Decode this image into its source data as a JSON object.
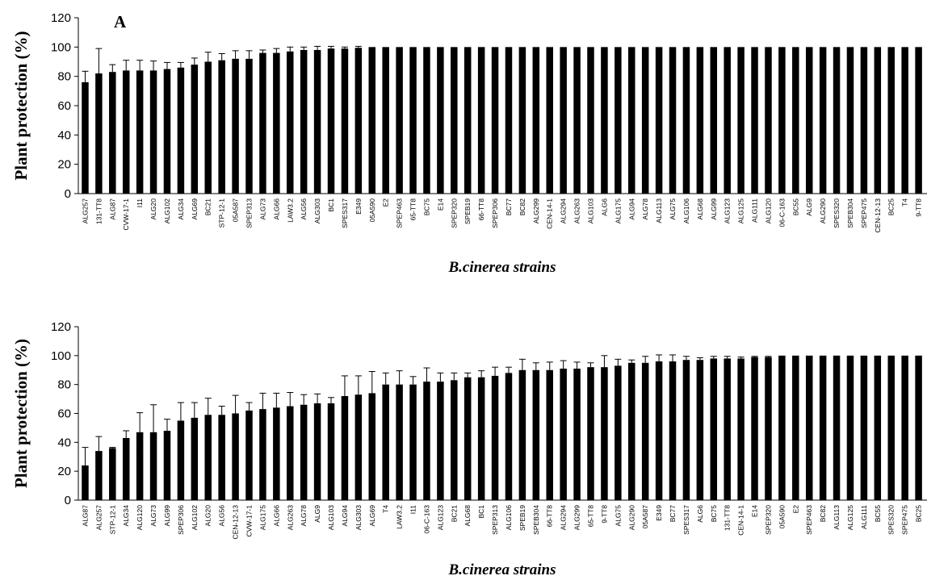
{
  "chart_data": [
    {
      "type": "bar",
      "panel_label": "A",
      "xlabel": "B.cinerea strains",
      "ylabel": "Plant protection (%)",
      "ylim": [
        0,
        120
      ],
      "yticks": [
        0,
        20,
        40,
        60,
        80,
        100,
        120
      ],
      "grid": false,
      "categories": [
        "ALG257",
        "131-TT8",
        "ALG87",
        "CVW-17-1",
        "I11",
        "ALG20",
        "ALG102",
        "ALG34",
        "ALG69",
        "BC21",
        "STP-12-1",
        "05A587",
        "SPEP313",
        "ALG73",
        "ALG66",
        "LAW3.2",
        "ALG56",
        "ALG303",
        "BC1",
        "SPES317",
        "E349",
        "05A590",
        "E2",
        "SPEP463",
        "65-TT8",
        "BC75",
        "E14",
        "SPEP320",
        "SPEB19",
        "66-TT8",
        "SPEP306",
        "BC77",
        "BC82",
        "ALG299",
        "CEN-14-1",
        "ALG294",
        "ALG263",
        "ALG103",
        "ALG6",
        "ALG175",
        "ALG94",
        "ALG78",
        "ALG113",
        "ALG75",
        "ALG106",
        "ALG68",
        "ALG99",
        "ALG123",
        "ALG125",
        "ALG111",
        "ALG120",
        "06-C-163",
        "BC55",
        "ALG9",
        "ALG290",
        "SPES320",
        "SPEB304",
        "SPEP475",
        "CEN-12-13",
        "BC25",
        "T4",
        "9-TT8"
      ],
      "values": [
        76,
        82,
        83,
        84,
        84,
        84,
        85,
        86,
        88,
        90,
        91,
        92,
        92,
        96,
        96,
        97,
        98,
        98,
        99,
        99,
        99.5,
        100,
        100,
        100,
        100,
        100,
        100,
        100,
        100,
        100,
        100,
        100,
        100,
        100,
        100,
        100,
        100,
        100,
        100,
        100,
        100,
        100,
        100,
        100,
        100,
        100,
        100,
        100,
        100,
        100,
        100,
        100,
        100,
        100,
        100,
        100,
        100,
        100,
        100,
        100,
        100,
        100
      ],
      "errors": [
        7.5,
        17,
        5,
        7,
        7,
        6.5,
        4.5,
        3.5,
        4.5,
        6.5,
        4.5,
        5.5,
        5.5,
        2,
        3,
        3,
        2,
        2.5,
        1.5,
        1,
        1,
        0,
        0,
        0,
        0,
        0,
        0,
        0,
        0,
        0,
        0,
        0,
        0,
        0,
        0,
        0,
        0,
        0,
        0,
        0,
        0,
        0,
        0,
        0,
        0,
        0,
        0,
        0,
        0,
        0,
        0,
        0,
        0,
        0,
        0,
        0,
        0,
        0,
        0,
        0,
        0,
        0
      ]
    },
    {
      "type": "bar",
      "xlabel": "B.cinerea strains",
      "ylabel": "Plant protection (%)",
      "ylim": [
        0,
        120
      ],
      "yticks": [
        0,
        20,
        40,
        60,
        80,
        100,
        120
      ],
      "grid": false,
      "categories": [
        "ALG87",
        "ALG257",
        "STP-12-1",
        "ALG34",
        "ALG120",
        "ALG73",
        "ALG99",
        "SPEP306",
        "ALG102",
        "ALG20",
        "ALG56",
        "CEN-12-13",
        "CVW-17-1",
        "ALG175",
        "ALG66",
        "ALG263",
        "ALG78",
        "ALG9",
        "ALG103",
        "ALG94",
        "ALG303",
        "ALG69",
        "T4",
        "LAW3.2",
        "I11",
        "06-C-163",
        "ALG123",
        "BC21",
        "ALG68",
        "BC1",
        "SPEP313",
        "ALG106",
        "SPEB19",
        "SPEB304",
        "66-TT8",
        "ALG294",
        "ALG299",
        "65-TT8",
        "9-TT8",
        "ALG75",
        "ALG290",
        "05A587",
        "E349",
        "BC77",
        "SPES317",
        "ALG6",
        "BC75",
        "131-TT8",
        "CEN-14-1",
        "E14",
        "SPEP320",
        "05A590",
        "E2",
        "SPEP463",
        "BC82",
        "ALG113",
        "ALG125",
        "ALG111",
        "BC55",
        "SPES320",
        "SPEP475",
        "BC25"
      ],
      "values": [
        24,
        34,
        36,
        43,
        47,
        47,
        48,
        55,
        57,
        59,
        59,
        60,
        62,
        63,
        64,
        65,
        66,
        67,
        67,
        72,
        73,
        74,
        80,
        80,
        80,
        82,
        82,
        83,
        85,
        85,
        86,
        88,
        90,
        90,
        90,
        91,
        91,
        92,
        92,
        93,
        95,
        95,
        96,
        96,
        97,
        97,
        98,
        98,
        98,
        99,
        99,
        100,
        100,
        100,
        100,
        100,
        100,
        100,
        100,
        100,
        100,
        100
      ],
      "errors": [
        12.5,
        10,
        0.5,
        5,
        13.5,
        19,
        8,
        12.5,
        10.5,
        11.5,
        6,
        12.5,
        5.5,
        11,
        10,
        9.5,
        7,
        6.5,
        4,
        14,
        13,
        15,
        8,
        9.5,
        5.5,
        9.5,
        6,
        5,
        3,
        4.5,
        6,
        4,
        7.5,
        5,
        5.5,
        5.5,
        4.5,
        3,
        8,
        4.5,
        2,
        4.5,
        4.5,
        4.5,
        2.5,
        1.5,
        1.5,
        1.5,
        1,
        0.5,
        0.5,
        0,
        0,
        0,
        0,
        0,
        0,
        0,
        0,
        0,
        0,
        0
      ]
    }
  ]
}
